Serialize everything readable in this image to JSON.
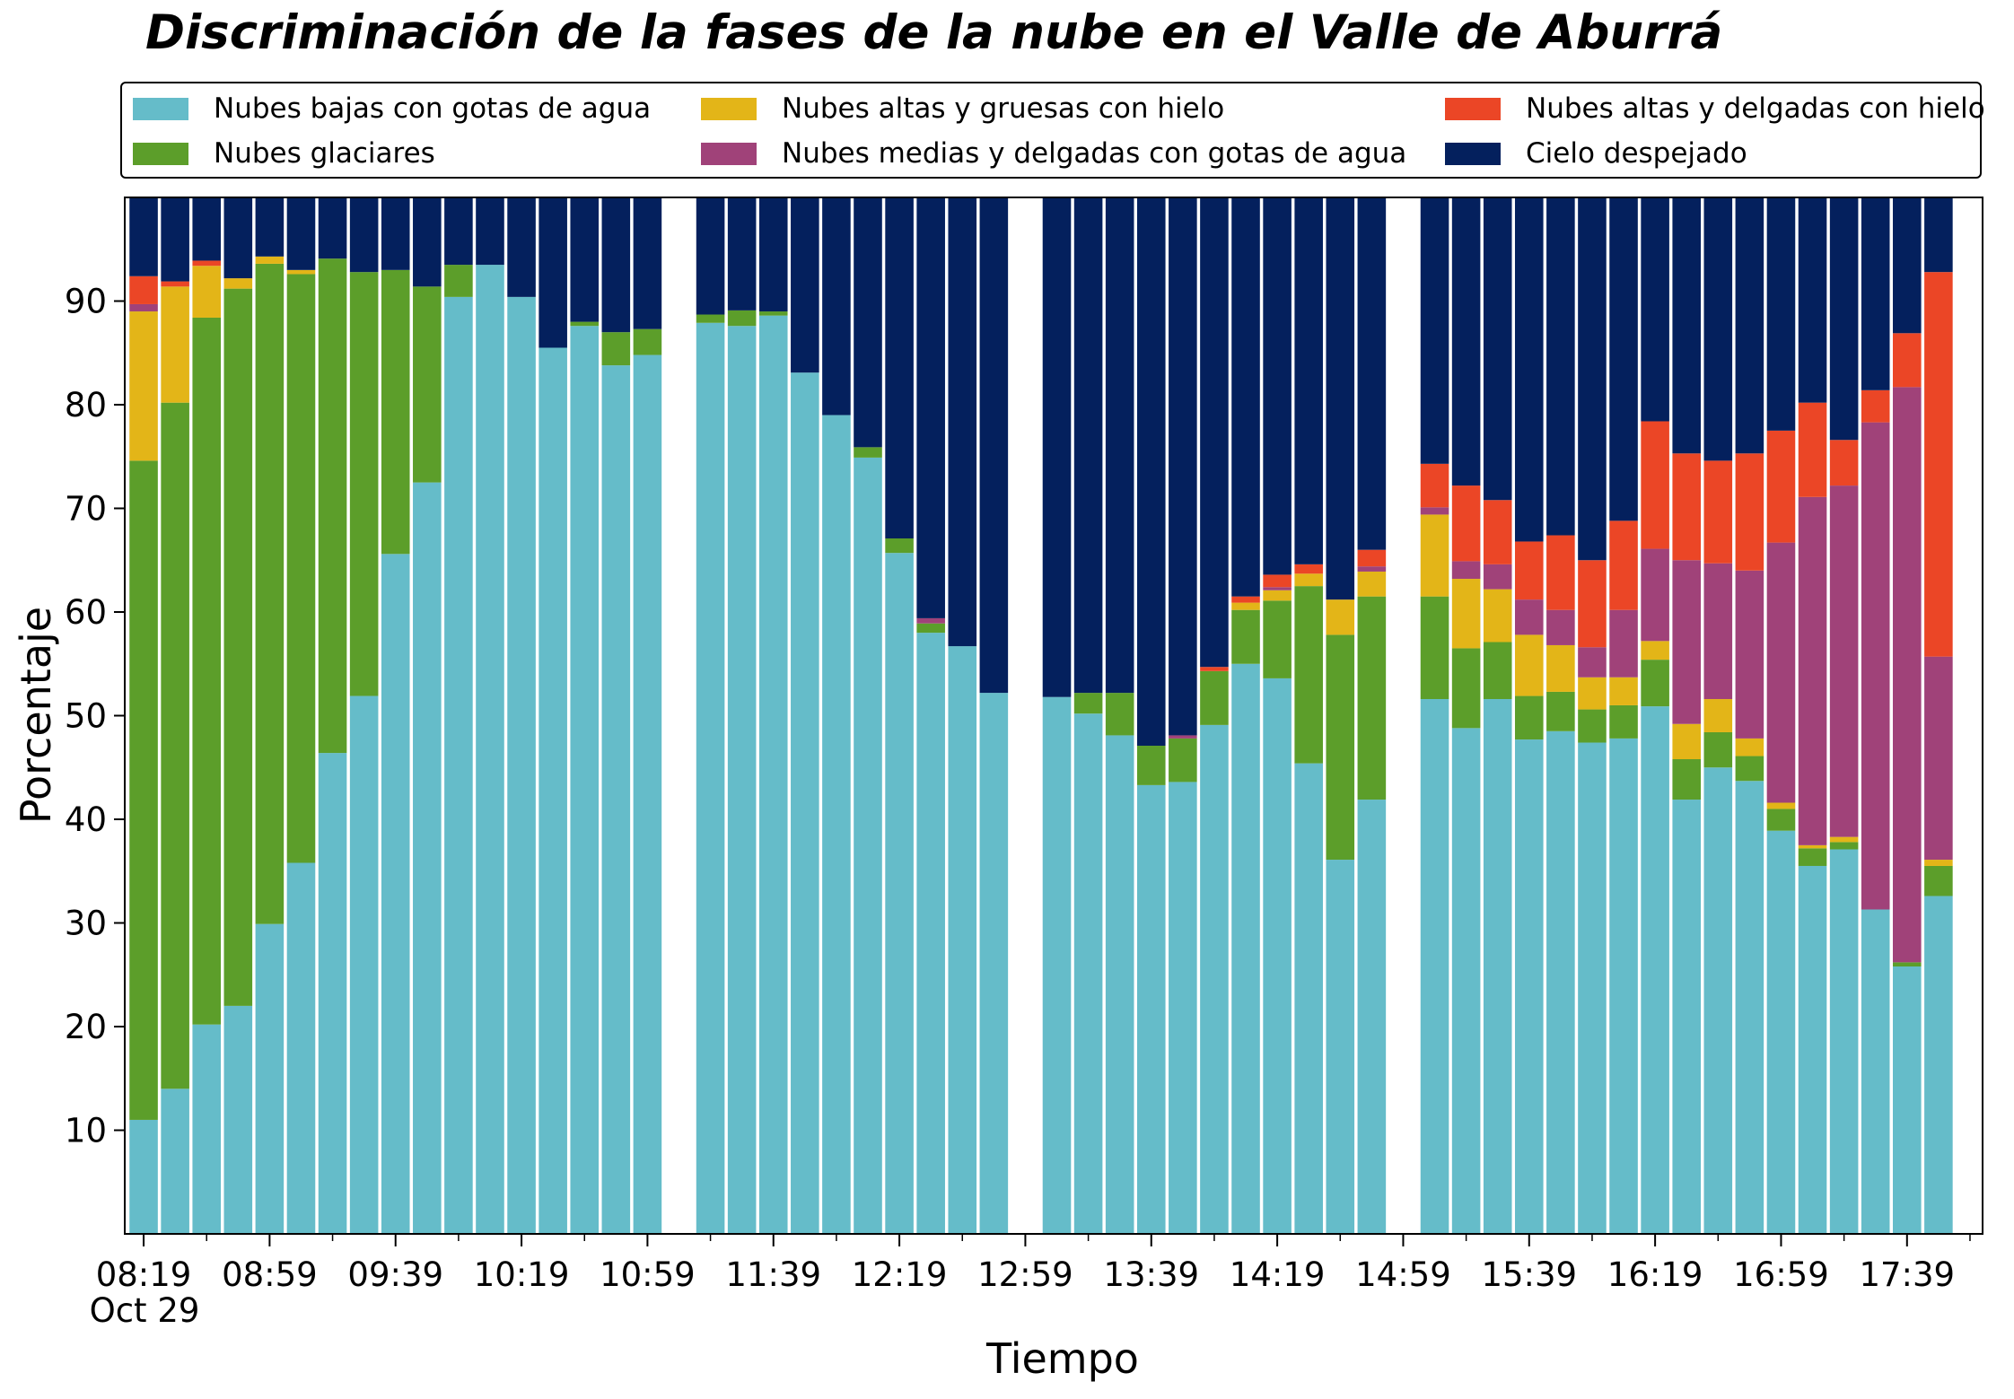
{
  "colors": {
    "low": "#65BCC9",
    "glacier": "#5C9E2A",
    "high_thick": "#E3B518",
    "medium_thin": "#A04279",
    "high_thin": "#EB4626",
    "clear": "#04205D"
  },
  "legend": {
    "items": [
      {
        "key": "low",
        "label": "Nubes bajas con gotas de agua"
      },
      {
        "key": "high_thick",
        "label": "Nubes altas y gruesas con hielo"
      },
      {
        "key": "high_thin",
        "label": "Nubes altas y delgadas con hielo"
      },
      {
        "key": "glacier",
        "label": "Nubes glaciares"
      },
      {
        "key": "medium_thin",
        "label": "Nubes medias y delgadas con gotas de agua"
      },
      {
        "key": "clear",
        "label": "Cielo despejado"
      }
    ]
  },
  "chart_data": {
    "type": "bar",
    "stacked": true,
    "title": "Discriminación de la fases de la nube en el Valle de Aburrá",
    "xlabel": "Tiempo",
    "ylabel": "Porcentaje",
    "ylim": [
      0,
      100
    ],
    "yticks": [
      10,
      20,
      30,
      40,
      50,
      60,
      70,
      80,
      90
    ],
    "date_label": "Oct 29",
    "xlim": [
      "08:13",
      "18:03"
    ],
    "xticks": [
      "08:19",
      "08:59",
      "09:39",
      "10:19",
      "10:59",
      "11:39",
      "12:19",
      "12:59",
      "13:39",
      "14:19",
      "14:59",
      "15:39",
      "16:19",
      "16:59",
      "17:39"
    ],
    "bar_width_minutes": 9,
    "legend_position": "top (above plot)",
    "grid": false,
    "series_order": [
      "low",
      "glacier",
      "high_thick",
      "medium_thin",
      "high_thin",
      "clear"
    ],
    "bars": [
      {
        "x": "08:19",
        "low": 11.0,
        "glacier": 63.6,
        "high_thick": 14.4,
        "medium_thin": 0.7,
        "high_thin": 2.7,
        "clear": 7.6
      },
      {
        "x": "08:29",
        "low": 14.0,
        "glacier": 66.2,
        "high_thick": 11.2,
        "medium_thin": 0.0,
        "high_thin": 0.5,
        "clear": 8.1
      },
      {
        "x": "08:39",
        "low": 20.2,
        "glacier": 68.2,
        "high_thick": 5.0,
        "medium_thin": 0.0,
        "high_thin": 0.5,
        "clear": 6.1
      },
      {
        "x": "08:49",
        "low": 22.0,
        "glacier": 69.2,
        "high_thick": 1.0,
        "medium_thin": 0.0,
        "high_thin": 0.0,
        "clear": 7.8
      },
      {
        "x": "08:59",
        "low": 29.9,
        "glacier": 63.7,
        "high_thick": 0.7,
        "medium_thin": 0.0,
        "high_thin": 0.0,
        "clear": 5.7
      },
      {
        "x": "09:09",
        "low": 35.8,
        "glacier": 56.8,
        "high_thick": 0.4,
        "medium_thin": 0.0,
        "high_thin": 0.0,
        "clear": 7.0
      },
      {
        "x": "09:19",
        "low": 46.4,
        "glacier": 47.7,
        "high_thick": 0.0,
        "medium_thin": 0.0,
        "high_thin": 0.0,
        "clear": 5.9
      },
      {
        "x": "09:29",
        "low": 51.9,
        "glacier": 40.9,
        "high_thick": 0.0,
        "medium_thin": 0.0,
        "high_thin": 0.0,
        "clear": 7.2
      },
      {
        "x": "09:39",
        "low": 65.6,
        "glacier": 27.4,
        "high_thick": 0.0,
        "medium_thin": 0.0,
        "high_thin": 0.0,
        "clear": 7.0
      },
      {
        "x": "09:49",
        "low": 72.5,
        "glacier": 18.9,
        "high_thick": 0.0,
        "medium_thin": 0.0,
        "high_thin": 0.0,
        "clear": 8.6
      },
      {
        "x": "09:59",
        "low": 90.4,
        "glacier": 3.1,
        "high_thick": 0.0,
        "medium_thin": 0.0,
        "high_thin": 0.0,
        "clear": 6.5
      },
      {
        "x": "10:09",
        "low": 93.5,
        "glacier": 0.0,
        "high_thick": 0.0,
        "medium_thin": 0.0,
        "high_thin": 0.0,
        "clear": 6.5
      },
      {
        "x": "10:19",
        "low": 90.4,
        "glacier": 0.0,
        "high_thick": 0.0,
        "medium_thin": 0.0,
        "high_thin": 0.0,
        "clear": 9.6
      },
      {
        "x": "10:29",
        "low": 85.5,
        "glacier": 0.0,
        "high_thick": 0.0,
        "medium_thin": 0.0,
        "high_thin": 0.0,
        "clear": 14.5
      },
      {
        "x": "10:39",
        "low": 87.6,
        "glacier": 0.4,
        "high_thick": 0.0,
        "medium_thin": 0.0,
        "high_thin": 0.0,
        "clear": 12.0
      },
      {
        "x": "10:49",
        "low": 83.8,
        "glacier": 3.2,
        "high_thick": 0.0,
        "medium_thin": 0.0,
        "high_thin": 0.0,
        "clear": 13.0
      },
      {
        "x": "10:59",
        "low": 84.8,
        "glacier": 2.5,
        "high_thick": 0.0,
        "medium_thin": 0.0,
        "high_thin": 0.0,
        "clear": 12.7
      },
      {
        "x": "11:19",
        "low": 87.9,
        "glacier": 0.8,
        "high_thick": 0.0,
        "medium_thin": 0.0,
        "high_thin": 0.0,
        "clear": 11.3
      },
      {
        "x": "11:29",
        "low": 87.6,
        "glacier": 1.5,
        "high_thick": 0.0,
        "medium_thin": 0.0,
        "high_thin": 0.0,
        "clear": 10.9
      },
      {
        "x": "11:39",
        "low": 88.6,
        "glacier": 0.4,
        "high_thick": 0.0,
        "medium_thin": 0.0,
        "high_thin": 0.0,
        "clear": 11.0
      },
      {
        "x": "11:49",
        "low": 83.1,
        "glacier": 0.0,
        "high_thick": 0.0,
        "medium_thin": 0.0,
        "high_thin": 0.0,
        "clear": 16.9
      },
      {
        "x": "11:59",
        "low": 79.0,
        "glacier": 0.0,
        "high_thick": 0.0,
        "medium_thin": 0.0,
        "high_thin": 0.0,
        "clear": 21.0
      },
      {
        "x": "12:09",
        "low": 74.9,
        "glacier": 1.0,
        "high_thick": 0.0,
        "medium_thin": 0.0,
        "high_thin": 0.0,
        "clear": 24.1
      },
      {
        "x": "12:19",
        "low": 65.7,
        "glacier": 1.4,
        "high_thick": 0.0,
        "medium_thin": 0.0,
        "high_thin": 0.0,
        "clear": 32.9
      },
      {
        "x": "12:29",
        "low": 58.0,
        "glacier": 0.9,
        "high_thick": 0.0,
        "medium_thin": 0.5,
        "high_thin": 0.0,
        "clear": 40.6
      },
      {
        "x": "12:39",
        "low": 56.7,
        "glacier": 0.0,
        "high_thick": 0.0,
        "medium_thin": 0.0,
        "high_thin": 0.0,
        "clear": 43.3
      },
      {
        "x": "12:49",
        "low": 52.2,
        "glacier": 0.0,
        "high_thick": 0.0,
        "medium_thin": 0.0,
        "high_thin": 0.0,
        "clear": 47.8
      },
      {
        "x": "13:09",
        "low": 51.8,
        "glacier": 0.0,
        "high_thick": 0.0,
        "medium_thin": 0.0,
        "high_thin": 0.0,
        "clear": 48.2
      },
      {
        "x": "13:19",
        "low": 50.2,
        "glacier": 2.0,
        "high_thick": 0.0,
        "medium_thin": 0.0,
        "high_thin": 0.0,
        "clear": 47.8
      },
      {
        "x": "13:29",
        "low": 48.1,
        "glacier": 4.1,
        "high_thick": 0.0,
        "medium_thin": 0.0,
        "high_thin": 0.0,
        "clear": 47.8
      },
      {
        "x": "13:39",
        "low": 43.3,
        "glacier": 3.8,
        "high_thick": 0.0,
        "medium_thin": 0.0,
        "high_thin": 0.0,
        "clear": 52.9
      },
      {
        "x": "13:49",
        "low": 43.6,
        "glacier": 4.2,
        "high_thick": 0.0,
        "medium_thin": 0.3,
        "high_thin": 0.0,
        "clear": 51.9
      },
      {
        "x": "13:59",
        "low": 49.1,
        "glacier": 5.2,
        "high_thick": 0.0,
        "medium_thin": 0.0,
        "high_thin": 0.4,
        "clear": 45.3
      },
      {
        "x": "14:09",
        "low": 55.0,
        "glacier": 5.2,
        "high_thick": 0.7,
        "medium_thin": 0.0,
        "high_thin": 0.6,
        "clear": 38.5
      },
      {
        "x": "14:19",
        "low": 53.6,
        "glacier": 7.5,
        "high_thick": 1.0,
        "medium_thin": 0.3,
        "high_thin": 1.2,
        "clear": 36.4
      },
      {
        "x": "14:29",
        "low": 45.4,
        "glacier": 17.1,
        "high_thick": 1.2,
        "medium_thin": 0.0,
        "high_thin": 0.9,
        "clear": 35.4
      },
      {
        "x": "14:39",
        "low": 36.1,
        "glacier": 21.7,
        "high_thick": 3.4,
        "medium_thin": 0.0,
        "high_thin": 0.0,
        "clear": 38.8
      },
      {
        "x": "14:49",
        "low": 41.9,
        "glacier": 19.6,
        "high_thick": 2.4,
        "medium_thin": 0.5,
        "high_thin": 1.6,
        "clear": 34.0
      },
      {
        "x": "15:09",
        "low": 51.6,
        "glacier": 9.9,
        "high_thick": 7.9,
        "medium_thin": 0.7,
        "high_thin": 4.2,
        "clear": 25.7
      },
      {
        "x": "15:19",
        "low": 48.8,
        "glacier": 7.7,
        "high_thick": 6.7,
        "medium_thin": 1.7,
        "high_thin": 7.3,
        "clear": 27.8
      },
      {
        "x": "15:29",
        "low": 51.6,
        "glacier": 5.5,
        "high_thick": 5.1,
        "medium_thin": 2.4,
        "high_thin": 6.2,
        "clear": 29.2
      },
      {
        "x": "15:39",
        "low": 47.7,
        "glacier": 4.2,
        "high_thick": 5.9,
        "medium_thin": 3.4,
        "high_thin": 5.6,
        "clear": 33.2
      },
      {
        "x": "15:49",
        "low": 48.5,
        "glacier": 3.8,
        "high_thick": 4.5,
        "medium_thin": 3.4,
        "high_thin": 7.2,
        "clear": 32.6
      },
      {
        "x": "15:59",
        "low": 47.4,
        "glacier": 3.2,
        "high_thick": 3.1,
        "medium_thin": 2.9,
        "high_thin": 8.4,
        "clear": 35.0
      },
      {
        "x": "16:09",
        "low": 47.8,
        "glacier": 3.2,
        "high_thick": 2.7,
        "medium_thin": 6.5,
        "high_thin": 8.6,
        "clear": 31.2
      },
      {
        "x": "16:19",
        "low": 50.9,
        "glacier": 4.5,
        "high_thick": 1.8,
        "medium_thin": 8.9,
        "high_thin": 12.3,
        "clear": 21.6
      },
      {
        "x": "16:29",
        "low": 41.9,
        "glacier": 3.9,
        "high_thick": 3.4,
        "medium_thin": 15.8,
        "high_thin": 10.3,
        "clear": 24.7
      },
      {
        "x": "16:39",
        "low": 45.0,
        "glacier": 3.4,
        "high_thick": 3.2,
        "medium_thin": 13.1,
        "high_thin": 9.9,
        "clear": 25.4
      },
      {
        "x": "16:49",
        "low": 43.7,
        "glacier": 2.4,
        "high_thick": 1.7,
        "medium_thin": 16.2,
        "high_thin": 11.3,
        "clear": 24.7
      },
      {
        "x": "16:59",
        "low": 38.9,
        "glacier": 2.1,
        "high_thick": 0.6,
        "medium_thin": 25.1,
        "high_thin": 10.8,
        "clear": 22.5
      },
      {
        "x": "17:09",
        "low": 35.5,
        "glacier": 1.7,
        "high_thick": 0.3,
        "medium_thin": 33.6,
        "high_thin": 9.1,
        "clear": 19.8
      },
      {
        "x": "17:19",
        "low": 37.1,
        "glacier": 0.7,
        "high_thick": 0.5,
        "medium_thin": 33.9,
        "high_thin": 4.4,
        "clear": 23.4
      },
      {
        "x": "17:29",
        "low": 31.3,
        "glacier": 0.0,
        "high_thick": 0.0,
        "medium_thin": 47.0,
        "high_thin": 3.1,
        "clear": 18.6
      },
      {
        "x": "17:39",
        "low": 25.8,
        "glacier": 0.4,
        "high_thick": 0.0,
        "medium_thin": 55.5,
        "high_thin": 5.2,
        "clear": 13.1
      },
      {
        "x": "17:49",
        "low": 32.6,
        "glacier": 2.9,
        "high_thick": 0.6,
        "medium_thin": 19.6,
        "high_thin": 37.1,
        "clear": 7.2
      }
    ]
  }
}
